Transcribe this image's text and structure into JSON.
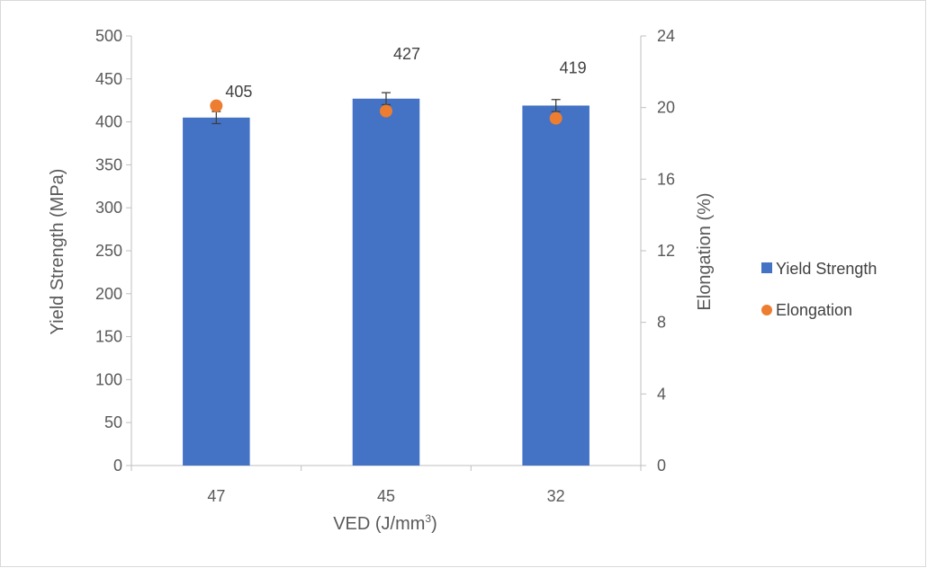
{
  "chart_data": {
    "type": "bar",
    "categories": [
      "47",
      "45",
      "32"
    ],
    "series": [
      {
        "name": "Yield Strength",
        "kind": "bar",
        "axis": "left",
        "color": "#4472C4",
        "values": [
          405,
          427,
          419
        ],
        "error": [
          7,
          7,
          7
        ],
        "labels": [
          "405",
          "427",
          "419"
        ]
      },
      {
        "name": "Elongation",
        "kind": "scatter",
        "axis": "right",
        "color": "#ED7D31",
        "values": [
          20.1,
          19.8,
          19.4
        ]
      }
    ],
    "xlabel": "VED (J/mm",
    "xlabel_sup": "3",
    "xlabel_end": ")",
    "ylabel": "Yield Strength (MPa)",
    "y2label": "Elongation (%)",
    "ylim": [
      0,
      500
    ],
    "y2lim": [
      0,
      24
    ],
    "yticks": [
      "0",
      "50",
      "100",
      "150",
      "200",
      "250",
      "300",
      "350",
      "400",
      "450",
      "500"
    ],
    "y2ticks": [
      "0",
      "4",
      "8",
      "12",
      "16",
      "20",
      "24"
    ],
    "legend_position": "right",
    "grid": false,
    "axis_color": "#bfbfbf"
  }
}
